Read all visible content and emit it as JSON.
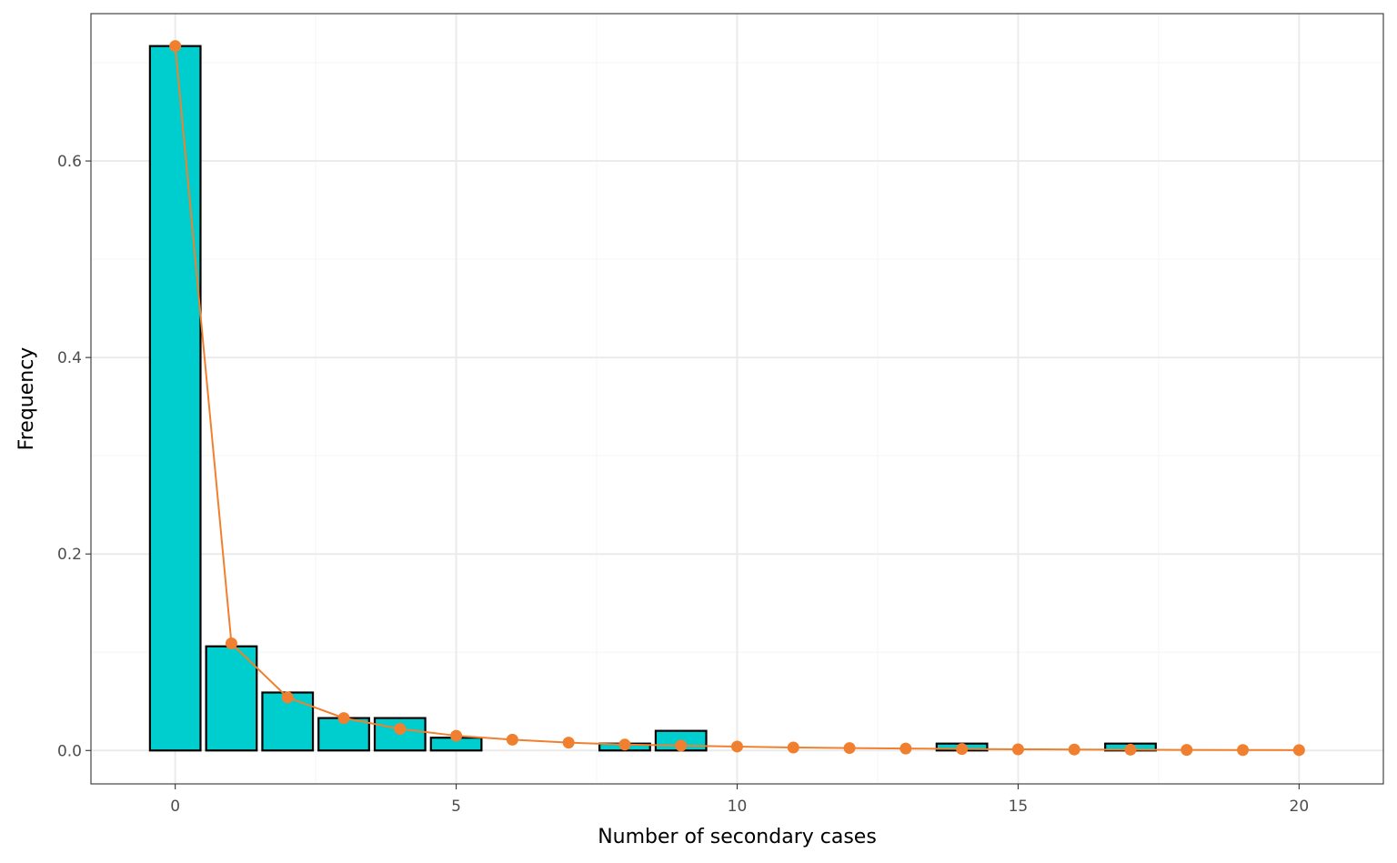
{
  "chart_data": {
    "type": "bar",
    "xlabel": "Number of secondary cases",
    "ylabel": "Frequency",
    "xlim": [
      -1.5,
      21.5
    ],
    "ylim": [
      -0.034,
      0.75
    ],
    "x_ticks": [
      0,
      5,
      10,
      15,
      20
    ],
    "x_minor_ticks": [
      2.5,
      7.5,
      12.5,
      17.5
    ],
    "y_ticks": [
      0.0,
      0.2,
      0.4,
      0.6
    ],
    "y_tick_labels": [
      "0.0",
      "0.2",
      "0.4",
      "0.6"
    ],
    "y_minor_ticks": [
      0.1,
      0.3,
      0.5,
      0.7
    ],
    "x_tick_labels": [
      "0",
      "5",
      "10",
      "15",
      "20"
    ],
    "grid": true,
    "series": [
      {
        "type": "bar",
        "x": [
          0,
          1,
          2,
          3,
          4,
          5,
          6,
          7,
          8,
          9,
          10,
          11,
          12,
          13,
          14,
          15,
          16,
          17,
          18,
          19,
          20
        ],
        "values": [
          0.717,
          0.106,
          0.059,
          0.033,
          0.033,
          0.013,
          0,
          0,
          0.007,
          0.02,
          0,
          0,
          0,
          0,
          0.007,
          0,
          0,
          0.007,
          0,
          0,
          0
        ],
        "color": "#00CDCD",
        "edge_color": "#000000"
      },
      {
        "type": "line",
        "x": [
          0,
          1,
          2,
          3,
          4,
          5,
          6,
          7,
          8,
          9,
          10,
          11,
          12,
          13,
          14,
          15,
          16,
          17,
          18,
          19,
          20
        ],
        "values": [
          0.717,
          0.109,
          0.054,
          0.033,
          0.022,
          0.015,
          0.011,
          0.008,
          0.006,
          0.005,
          0.004,
          0.003,
          0.0025,
          0.002,
          0.0015,
          0.0012,
          0.001,
          0.0008,
          0.0006,
          0.0005,
          0.0004
        ],
        "color": "#F08030"
      }
    ],
    "colors": {
      "panel_border": "#333333",
      "grid_major": "#EBEBEB",
      "grid_minor": "#F5F5F5",
      "tick": "#333333"
    }
  }
}
